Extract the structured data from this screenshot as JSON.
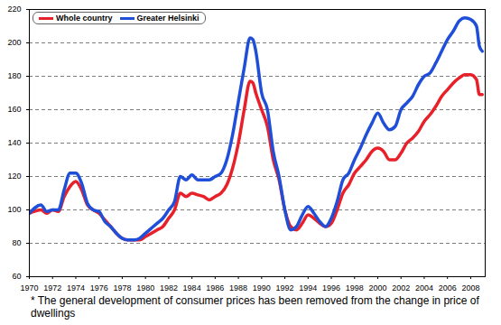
{
  "chart_data": {
    "type": "line",
    "x": [
      1970,
      1971,
      1971.5,
      1972,
      1972.5,
      1973,
      1973.5,
      1974,
      1974.5,
      1975,
      1975.5,
      1976,
      1976.5,
      1977,
      1977.5,
      1978,
      1978.5,
      1979,
      1979.5,
      1980,
      1980.5,
      1981,
      1981.5,
      1982,
      1982.5,
      1983,
      1983.5,
      1984,
      1984.5,
      1985,
      1985.5,
      1986,
      1986.5,
      1987,
      1987.5,
      1988,
      1988.5,
      1989,
      1989.25,
      1989.5,
      1990,
      1990.5,
      1991,
      1991.5,
      1992,
      1992.5,
      1993,
      1993.5,
      1994,
      1994.5,
      1995,
      1995.5,
      1996,
      1996.5,
      1997,
      1997.5,
      1998,
      1998.5,
      1999,
      1999.5,
      2000,
      2000.5,
      2001,
      2001.5,
      2002,
      2002.5,
      2003,
      2003.5,
      2004,
      2004.5,
      2005,
      2005.5,
      2006,
      2006.5,
      2007,
      2007.5,
      2008,
      2008.5,
      2008.75,
      2009
    ],
    "series": [
      {
        "name": "Whole country",
        "color": "#e8202a",
        "values": [
          98,
          100,
          98,
          100,
          99,
          108,
          114,
          117,
          112,
          103,
          100,
          98,
          94,
          90,
          86,
          83,
          82,
          82,
          82,
          84,
          86,
          88,
          90,
          95,
          100,
          110,
          108,
          110,
          109,
          108,
          106,
          108,
          110,
          115,
          125,
          140,
          160,
          177,
          176,
          170,
          160,
          150,
          130,
          118,
          100,
          90,
          88,
          92,
          97,
          95,
          92,
          90,
          92,
          100,
          110,
          115,
          122,
          126,
          130,
          135,
          137,
          135,
          130,
          130,
          134,
          140,
          143,
          147,
          153,
          157,
          162,
          168,
          172,
          176,
          179,
          181,
          181,
          178,
          169,
          169
        ]
      },
      {
        "name": "Greater Helsinki",
        "color": "#1f4fd8",
        "values": [
          98,
          103,
          99,
          100,
          100,
          112,
          122,
          122,
          116,
          104,
          100,
          99,
          93,
          90,
          86,
          83,
          82,
          82,
          83,
          86,
          89,
          92,
          95,
          100,
          105,
          120,
          118,
          121,
          118,
          118,
          118,
          120,
          122,
          130,
          145,
          165,
          185,
          203,
          202,
          195,
          170,
          160,
          135,
          120,
          100,
          88,
          90,
          97,
          102,
          98,
          93,
          90,
          95,
          105,
          118,
          122,
          130,
          137,
          145,
          152,
          158,
          152,
          148,
          150,
          160,
          164,
          168,
          175,
          180,
          182,
          188,
          195,
          202,
          207,
          213,
          215,
          214,
          210,
          198,
          195
        ]
      }
    ],
    "xlim": [
      1970,
      2009.25
    ],
    "xticks": [
      1970,
      1972,
      1974,
      1976,
      1978,
      1980,
      1982,
      1984,
      1986,
      1988,
      1990,
      1992,
      1994,
      1996,
      1998,
      2000,
      2002,
      2004,
      2006,
      2008
    ],
    "ylim": [
      60,
      220
    ],
    "yticks": [
      60,
      80,
      100,
      120,
      140,
      160,
      180,
      200,
      220
    ],
    "grid": true,
    "legend": "top-left",
    "caption": "* The general development of consumer prices has been removed from the change in price of dwellings"
  }
}
